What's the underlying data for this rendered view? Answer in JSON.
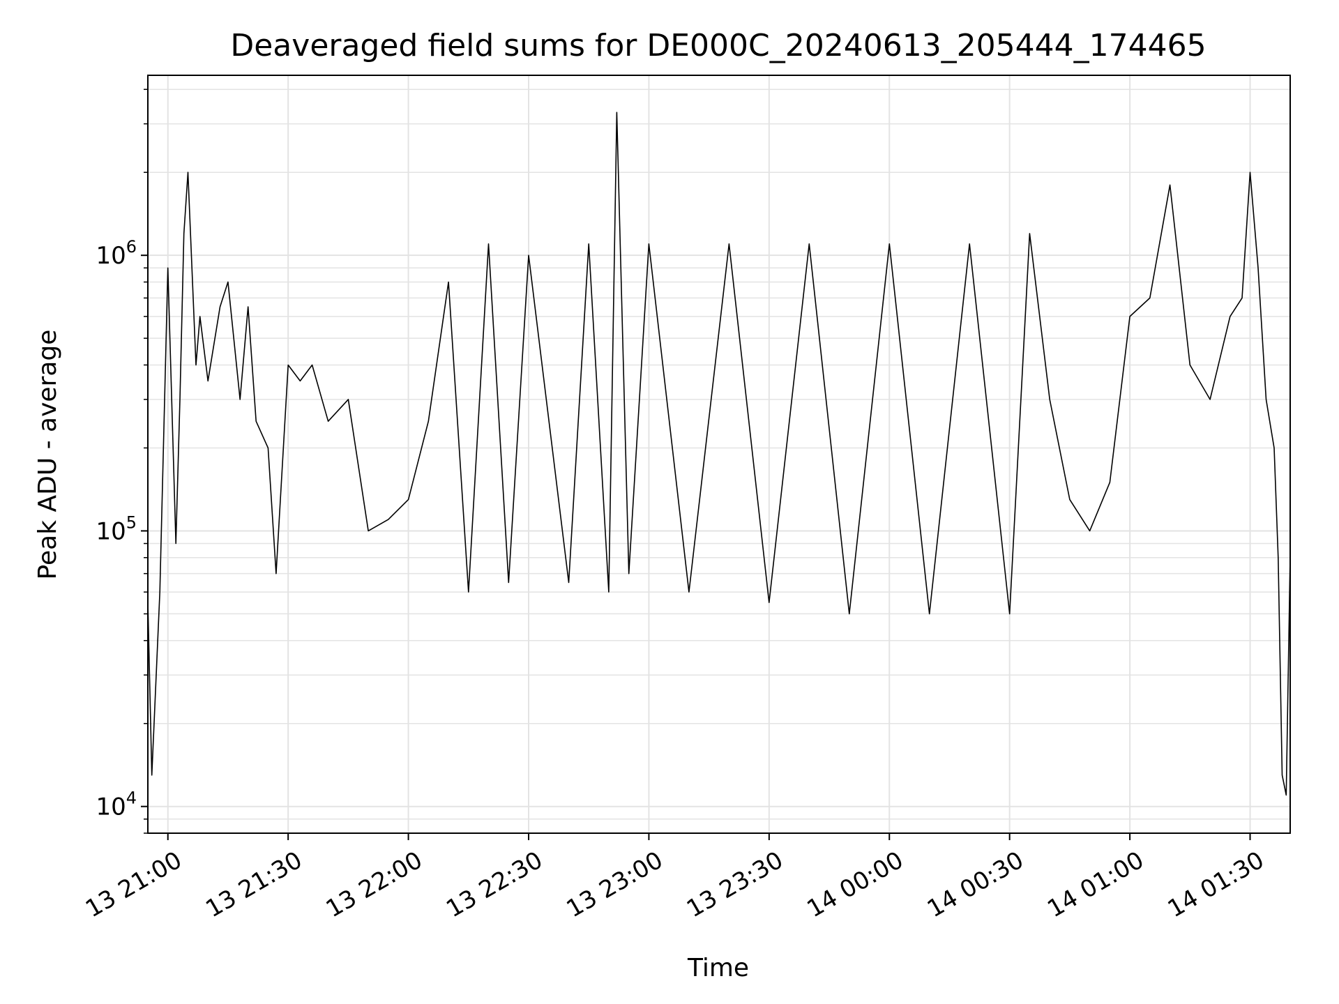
{
  "chart_data": {
    "type": "line",
    "title": "Deaveraged field sums for DE000C_20240613_205444_174465",
    "xlabel": "Time",
    "ylabel": "Peak ADU - average",
    "yscale": "log",
    "grid": true,
    "line_color": "#000000",
    "xlim": [
      "2024-06-13 20:55",
      "2024-06-14 01:40"
    ],
    "ylim": [
      8000,
      4500000
    ],
    "x_ticks": [
      "2024-06-13 21:00",
      "2024-06-13 21:30",
      "2024-06-13 22:00",
      "2024-06-13 22:30",
      "2024-06-13 23:00",
      "2024-06-13 23:30",
      "2024-06-14 00:00",
      "2024-06-14 00:30",
      "2024-06-14 01:00",
      "2024-06-14 01:30"
    ],
    "x_tick_labels": [
      "13 21:00",
      "13 21:30",
      "13 22:00",
      "13 22:30",
      "13 23:00",
      "13 23:30",
      "14 00:00",
      "14 00:30",
      "14 01:00",
      "14 01:30"
    ],
    "y_ticks": [
      {
        "value": 10000,
        "base": "10",
        "exp": "4"
      },
      {
        "value": 100000,
        "base": "10",
        "exp": "5"
      },
      {
        "value": 1000000,
        "base": "10",
        "exp": "6"
      }
    ],
    "series": [
      {
        "x": [
          "2024-06-13 20:55",
          "2024-06-13 20:56",
          "2024-06-13 20:58",
          "2024-06-13 21:00",
          "2024-06-13 21:02",
          "2024-06-13 21:03",
          "2024-06-13 21:04",
          "2024-06-13 21:05",
          "2024-06-13 21:07",
          "2024-06-13 21:08",
          "2024-06-13 21:10",
          "2024-06-13 21:13",
          "2024-06-13 21:15",
          "2024-06-13 21:18",
          "2024-06-13 21:20",
          "2024-06-13 21:22",
          "2024-06-13 21:25",
          "2024-06-13 21:27",
          "2024-06-13 21:30",
          "2024-06-13 21:33",
          "2024-06-13 21:36",
          "2024-06-13 21:40",
          "2024-06-13 21:45",
          "2024-06-13 21:50",
          "2024-06-13 21:55",
          "2024-06-13 22:00",
          "2024-06-13 22:05",
          "2024-06-13 22:10",
          "2024-06-13 22:15",
          "2024-06-13 22:20",
          "2024-06-13 22:25",
          "2024-06-13 22:30",
          "2024-06-13 22:40",
          "2024-06-13 22:45",
          "2024-06-13 22:50",
          "2024-06-13 22:52",
          "2024-06-13 22:55",
          "2024-06-13 23:00",
          "2024-06-13 23:10",
          "2024-06-13 23:20",
          "2024-06-13 23:30",
          "2024-06-13 23:40",
          "2024-06-13 23:50",
          "2024-06-14 00:00",
          "2024-06-14 00:10",
          "2024-06-14 00:20",
          "2024-06-14 00:30",
          "2024-06-14 00:35",
          "2024-06-14 00:40",
          "2024-06-14 00:45",
          "2024-06-14 00:50",
          "2024-06-14 00:55",
          "2024-06-14 01:00",
          "2024-06-14 01:05",
          "2024-06-14 01:10",
          "2024-06-14 01:15",
          "2024-06-14 01:20",
          "2024-06-14 01:25",
          "2024-06-14 01:28",
          "2024-06-14 01:30",
          "2024-06-14 01:32",
          "2024-06-14 01:34",
          "2024-06-14 01:36",
          "2024-06-14 01:37",
          "2024-06-14 01:38",
          "2024-06-14 01:39",
          "2024-06-14 01:40"
        ],
        "y": [
          55000,
          13000,
          60000,
          900000,
          90000,
          300000,
          1200000,
          2000000,
          400000,
          600000,
          350000,
          650000,
          800000,
          300000,
          650000,
          250000,
          200000,
          70000,
          400000,
          350000,
          400000,
          250000,
          300000,
          100000,
          110000,
          130000,
          250000,
          800000,
          60000,
          1100000,
          65000,
          1000000,
          65000,
          1100000,
          60000,
          3300000,
          70000,
          1100000,
          60000,
          1100000,
          55000,
          1100000,
          50000,
          1100000,
          50000,
          1100000,
          50000,
          1200000,
          300000,
          130000,
          100000,
          150000,
          600000,
          700000,
          1800000,
          400000,
          300000,
          600000,
          700000,
          2000000,
          900000,
          300000,
          200000,
          80000,
          13000,
          11000,
          80000
        ]
      }
    ]
  }
}
